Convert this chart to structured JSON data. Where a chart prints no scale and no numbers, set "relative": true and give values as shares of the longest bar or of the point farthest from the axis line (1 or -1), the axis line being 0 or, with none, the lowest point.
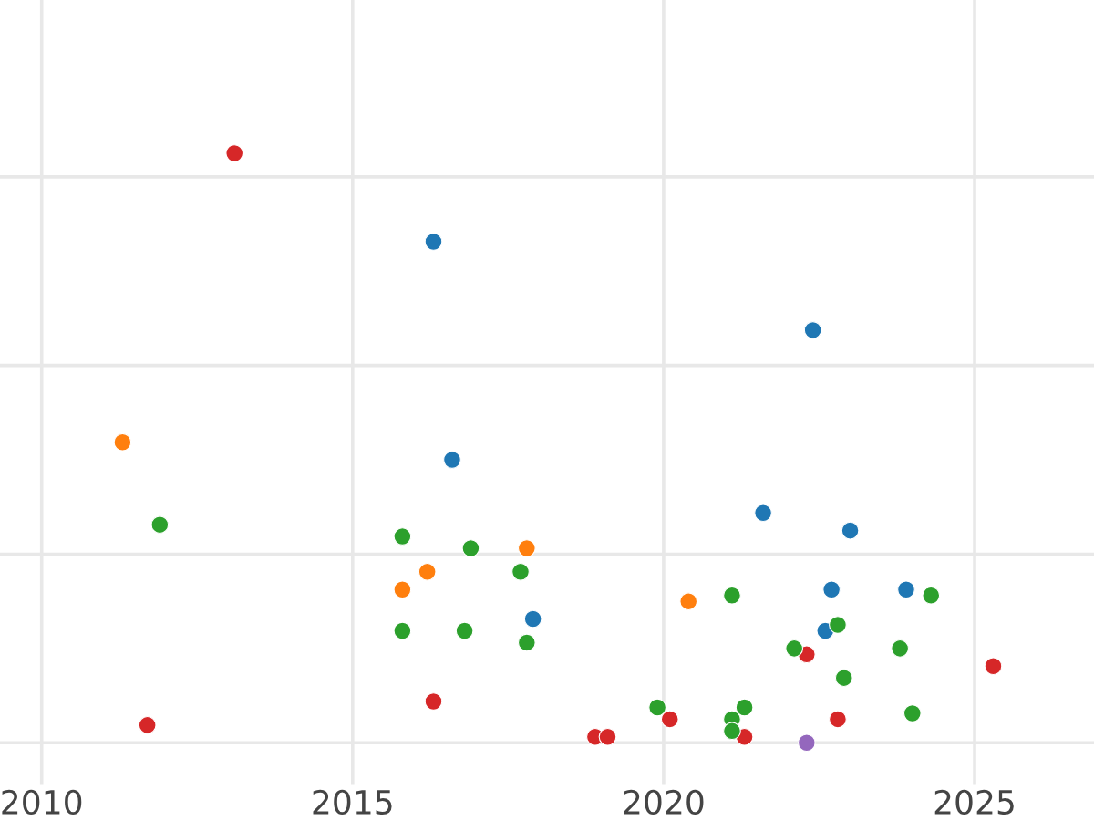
{
  "chart_data": {
    "type": "scatter",
    "relative": true,
    "grid": true,
    "marker": "circle",
    "xlim": [
      2009.33,
      2026.92
    ],
    "xticks": [
      2010,
      2015,
      2020,
      2025
    ],
    "tick_labels": "x",
    "series": [
      {
        "color": "#d62728",
        "x": [
          2013.1,
          2011.7,
          2016.3,
          2018.9,
          2019.1,
          2020.1,
          2021.3,
          2022.3,
          2022.8,
          2025.3
        ],
        "values": [
          1.0,
          0.03,
          0.07,
          0.01,
          0.01,
          0.04,
          0.01,
          0.15,
          0.04,
          0.13
        ]
      },
      {
        "color": "#1f77b4",
        "x": [
          2016.3,
          2022.4,
          2016.6,
          2021.6,
          2023.0,
          2017.9,
          2022.7,
          2023.9,
          2022.6
        ],
        "values": [
          0.85,
          0.7,
          0.48,
          0.39,
          0.36,
          0.21,
          0.26,
          0.26,
          0.19
        ]
      },
      {
        "color": "#ff7f0e",
        "x": [
          2011.3,
          2017.8,
          2016.2,
          2015.8,
          2020.4
        ],
        "values": [
          0.51,
          0.33,
          0.29,
          0.26,
          0.24
        ]
      },
      {
        "color": "#2ca02c",
        "x": [
          2011.9,
          2015.8,
          2016.9,
          2017.7,
          2015.8,
          2016.8,
          2017.8,
          2021.1,
          2024.3,
          2022.8,
          2022.1,
          2023.8,
          2022.9,
          2019.9,
          2021.3,
          2021.1,
          2021.1,
          2024.0
        ],
        "values": [
          0.37,
          0.35,
          0.33,
          0.29,
          0.19,
          0.19,
          0.17,
          0.25,
          0.25,
          0.2,
          0.16,
          0.16,
          0.11,
          0.06,
          0.06,
          0.04,
          0.02,
          0.05
        ]
      },
      {
        "color": "#9467bd",
        "x": [
          2022.3
        ],
        "values": [
          0.0
        ]
      }
    ]
  }
}
